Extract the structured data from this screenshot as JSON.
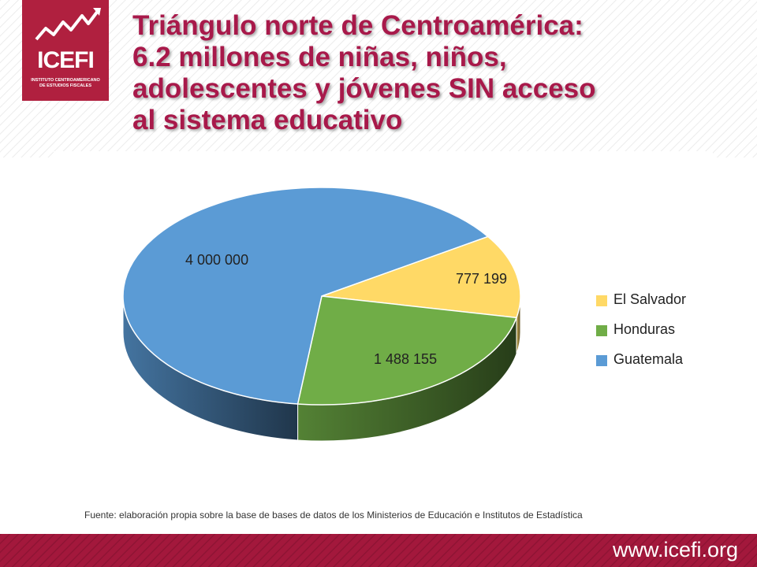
{
  "logo": {
    "name": "ICEFI",
    "subtitle_line1": "INSTITUTO CENTROAMERICANO",
    "subtitle_line2": "DE ESTUDIOS FISCALES"
  },
  "title": {
    "line1": "Triángulo norte de Centroamérica:",
    "line2": "6.2 millones de niñas, niños,",
    "line3": "adolescentes y jóvenes SIN acceso",
    "line4": "al sistema educativo"
  },
  "chart_data": {
    "type": "pie",
    "title": "",
    "categories": [
      "El Salvador",
      "Honduras",
      "Guatemala"
    ],
    "values": [
      777199,
      1488155,
      4000000
    ],
    "data_labels": [
      "777 199",
      "1 488 155",
      "4 000 000"
    ],
    "colors": [
      "#ffd966",
      "#70ad47",
      "#5b9bd5"
    ],
    "legend_placement": "right",
    "style": "3d"
  },
  "source_note": "Fuente: elaboración propia sobre la base de bases de datos de los Ministerios de Educación e Institutos de Estadística",
  "footer": {
    "url": "www.icefi.org",
    "color": "#a3183c"
  },
  "brand_color": "#b0203f",
  "title_color": "#a8194a"
}
